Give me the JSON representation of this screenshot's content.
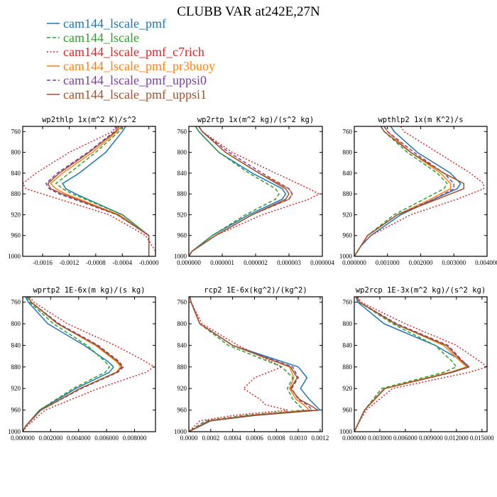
{
  "title": "CLUBB VAR at242E,27N",
  "legend": [
    {
      "name": "cam144_lscale_pmf",
      "color": "#1f77b4",
      "dash": "solid"
    },
    {
      "name": "cam144_lscale",
      "color": "#2ca02c",
      "dash": "dashed"
    },
    {
      "name": "cam144_lscale_pmf_c7rich",
      "color": "#d62728",
      "dash": "dotted"
    },
    {
      "name": "cam144_lscale_pmf_pr3buoy",
      "color": "#ff7f0e",
      "dash": "solid"
    },
    {
      "name": "cam144_lscale_pmf_uppsi0",
      "color": "#7b3f9e",
      "dash": "dashed"
    },
    {
      "name": "cam144_lscale_pmf_uppsi1",
      "color": "#a0522d",
      "dash": "solid"
    }
  ],
  "chart_data": [
    {
      "type": "line",
      "title": "wp2thlp  1x(m^2 K)/s^2",
      "xlim": [
        -0.0019,
        0.0001
      ],
      "ylim": [
        1000,
        750
      ],
      "xticks": [
        -0.0016,
        -0.0012,
        -0.0008,
        -0.0004,
        -0.0
      ],
      "xtick_labels": [
        "-0.0016",
        "-0.0012",
        "-0.0008",
        "-0.0004",
        "-0.0000"
      ],
      "yticks": [
        760,
        800,
        840,
        880,
        920,
        960,
        1000
      ],
      "y": [
        750,
        760,
        800,
        840,
        860,
        870,
        880,
        920,
        960,
        970,
        990,
        1000
      ],
      "series": [
        {
          "name": "cam144_lscale_pmf",
          "values": [
            -0.00035,
            -0.0004,
            -0.00065,
            -0.00105,
            -0.0013,
            -0.00125,
            -0.0011,
            -0.0004,
            0.0,
            0.0,
            0.0,
            0.0
          ]
        },
        {
          "name": "cam144_lscale",
          "values": [
            -0.0004,
            -0.00045,
            -0.0008,
            -0.0012,
            -0.0014,
            -0.0013,
            -0.00115,
            -0.0004,
            0.0,
            0.0,
            0.0,
            0.0
          ]
        },
        {
          "name": "cam144_lscale_pmf_c7rich",
          "values": [
            -0.0005,
            -0.00055,
            -0.0012,
            -0.0017,
            -0.0019,
            -0.00185,
            -0.0016,
            -0.0006,
            -5e-05,
            0.0,
            0.0001,
            0.0001
          ]
        },
        {
          "name": "cam144_lscale_pmf_pr3buoy",
          "values": [
            -0.00042,
            -0.00048,
            -0.00085,
            -0.0013,
            -0.00148,
            -0.0014,
            -0.00125,
            -0.00045,
            0.0,
            0.0,
            0.0,
            0.0
          ]
        },
        {
          "name": "cam144_lscale_pmf_uppsi0",
          "values": [
            -0.00048,
            -0.00052,
            -0.00092,
            -0.00138,
            -0.00155,
            -0.0015,
            -0.00135,
            -0.00048,
            0.0,
            0.0,
            0.0,
            0.0
          ]
        },
        {
          "name": "cam144_lscale_pmf_uppsi1",
          "values": [
            -0.00045,
            -0.0005,
            -0.0009,
            -0.00135,
            -0.00152,
            -0.00148,
            -0.0013,
            -0.00047,
            0.0,
            0.0,
            0.0,
            0.0
          ]
        }
      ]
    },
    {
      "type": "line",
      "title": "wp2rtp  1x(m^2 kg)/(s^2 kg)",
      "xlim": [
        0.0,
        4e-06
      ],
      "ylim": [
        1000,
        750
      ],
      "xticks": [
        0.0,
        1e-06,
        2e-06,
        3e-06,
        4e-06
      ],
      "xtick_labels": [
        "0.000000",
        "0.000001",
        "0.000002",
        "0.000003",
        "0.000004"
      ],
      "yticks": [
        760,
        800,
        840,
        880,
        920,
        960,
        1000
      ],
      "y": [
        750,
        760,
        800,
        840,
        870,
        880,
        890,
        920,
        960,
        990,
        1000
      ],
      "series": [
        {
          "name": "cam144_lscale_pmf",
          "values": [
            2e-07,
            3e-07,
            9e-07,
            1.9e-06,
            2.8e-06,
            2.9e-06,
            2.8e-06,
            1.8e-06,
            7e-07,
            1e-07,
            0.0
          ]
        },
        {
          "name": "cam144_lscale",
          "values": [
            2e-07,
            3e-07,
            9e-07,
            1.8e-06,
            2.6e-06,
            2.7e-06,
            2.6e-06,
            1.7e-06,
            7e-07,
            1e-07,
            0.0
          ]
        },
        {
          "name": "cam144_lscale_pmf_c7rich",
          "values": [
            3e-07,
            4e-07,
            1.3e-06,
            2.6e-06,
            3.6e-06,
            3.9e-06,
            3.6e-06,
            2.2e-06,
            8e-07,
            1e-07,
            0.0
          ]
        },
        {
          "name": "cam144_lscale_pmf_pr3buoy",
          "values": [
            3e-07,
            4e-07,
            1.1e-06,
            2.1e-06,
            3e-06,
            3.1e-06,
            3e-06,
            1.9e-06,
            8e-07,
            1e-07,
            0.0
          ]
        },
        {
          "name": "cam144_lscale_pmf_uppsi0",
          "values": [
            3e-07,
            4e-07,
            1.2e-06,
            2.2e-06,
            3e-06,
            3.1e-06,
            3e-06,
            1.9e-06,
            8e-07,
            1e-07,
            0.0
          ]
        },
        {
          "name": "cam144_lscale_pmf_uppsi1",
          "values": [
            3e-07,
            4e-07,
            1.1e-06,
            2.1e-06,
            2.9e-06,
            3e-06,
            2.9e-06,
            1.9e-06,
            8e-07,
            1e-07,
            0.0
          ]
        }
      ]
    },
    {
      "type": "line",
      "title": "wpthlp2  1x(m K^2)/s",
      "xlim": [
        0.0,
        0.004
      ],
      "ylim": [
        1000,
        750
      ],
      "xticks": [
        0.0,
        0.001,
        0.002,
        0.003,
        0.004
      ],
      "xtick_labels": [
        "0.000000",
        "0.001000",
        "0.002000",
        "0.003000",
        "0.004000"
      ],
      "yticks": [
        760,
        800,
        840,
        880,
        920,
        960,
        1000
      ],
      "y": [
        750,
        760,
        800,
        840,
        860,
        870,
        890,
        920,
        960,
        980,
        1000
      ],
      "series": [
        {
          "name": "cam144_lscale_pmf",
          "values": [
            0.0011,
            0.0012,
            0.0019,
            0.0029,
            0.0032,
            0.0031,
            0.0024,
            0.0014,
            0.0005,
            0.0002,
            0.0
          ]
        },
        {
          "name": "cam144_lscale",
          "values": [
            0.0008,
            0.0009,
            0.0016,
            0.0025,
            0.0028,
            0.0027,
            0.0021,
            0.0012,
            0.0004,
            0.0002,
            0.0
          ]
        },
        {
          "name": "cam144_lscale_pmf_c7rich",
          "values": [
            0.0014,
            0.0015,
            0.0025,
            0.0035,
            0.0039,
            0.0039,
            0.0031,
            0.0017,
            0.0005,
            0.0002,
            0.0
          ]
        },
        {
          "name": "cam144_lscale_pmf_pr3buoy",
          "values": [
            0.0009,
            0.001,
            0.0017,
            0.0026,
            0.0029,
            0.0029,
            0.0023,
            0.0013,
            0.0004,
            0.0002,
            0.0
          ]
        },
        {
          "name": "cam144_lscale_pmf_uppsi0",
          "values": [
            0.0009,
            0.001,
            0.0018,
            0.0027,
            0.003,
            0.003,
            0.0024,
            0.0013,
            0.0004,
            0.0002,
            0.0
          ]
        },
        {
          "name": "cam144_lscale_pmf_uppsi1",
          "values": [
            0.0008,
            0.0009,
            0.0017,
            0.0027,
            0.0033,
            0.0033,
            0.0025,
            0.0013,
            0.0004,
            0.0002,
            0.0
          ]
        }
      ]
    },
    {
      "type": "line",
      "title": "wprtp2  1E-6x(m kg)/(s kg)",
      "xlim": [
        0.0,
        0.0095
      ],
      "ylim": [
        1000,
        750
      ],
      "xticks": [
        0.0,
        0.002,
        0.004,
        0.006,
        0.008
      ],
      "xtick_labels": [
        "0.000000",
        "0.002000",
        "0.004000",
        "0.006000",
        "0.008000"
      ],
      "yticks": [
        760,
        800,
        840,
        880,
        920,
        960,
        1000
      ],
      "y": [
        750,
        760,
        800,
        840,
        870,
        880,
        890,
        920,
        960,
        990,
        1000
      ],
      "series": [
        {
          "name": "cam144_lscale_pmf",
          "values": [
            0.0002,
            0.0004,
            0.0018,
            0.0044,
            0.0061,
            0.0065,
            0.0062,
            0.0038,
            0.0012,
            0.0002,
            0.0
          ]
        },
        {
          "name": "cam144_lscale",
          "values": [
            0.0003,
            0.0005,
            0.0022,
            0.0046,
            0.0059,
            0.0062,
            0.0059,
            0.0036,
            0.0012,
            0.0002,
            0.0
          ]
        },
        {
          "name": "cam144_lscale_pmf_c7rich",
          "values": [
            0.0005,
            0.0008,
            0.0032,
            0.0066,
            0.0088,
            0.0094,
            0.0088,
            0.0054,
            0.0016,
            0.0003,
            0.0
          ]
        },
        {
          "name": "cam144_lscale_pmf_pr3buoy",
          "values": [
            0.0004,
            0.0006,
            0.0025,
            0.0052,
            0.0067,
            0.007,
            0.0067,
            0.0041,
            0.0013,
            0.0002,
            0.0
          ]
        },
        {
          "name": "cam144_lscale_pmf_uppsi0",
          "values": [
            0.0004,
            0.0006,
            0.0026,
            0.0054,
            0.0069,
            0.0072,
            0.0068,
            0.0042,
            0.0013,
            0.0002,
            0.0
          ]
        },
        {
          "name": "cam144_lscale_pmf_uppsi1",
          "values": [
            0.0004,
            0.0006,
            0.0025,
            0.0053,
            0.0068,
            0.0071,
            0.0067,
            0.0041,
            0.0013,
            0.0002,
            0.0
          ]
        }
      ]
    },
    {
      "type": "line",
      "title": "rcp2  1E-6x(kg^2)/(kg^2)",
      "xlim": [
        0.0,
        0.00122
      ],
      "ylim": [
        1000,
        750
      ],
      "xticks": [
        0.0,
        0.0002,
        0.0004,
        0.0006,
        0.0008,
        0.001,
        0.0012
      ],
      "xtick_labels": [
        "0.0000",
        "0.0002",
        "0.0004",
        "0.0006",
        "0.0008",
        "0.0010",
        "0.0012"
      ],
      "yticks": [
        760,
        800,
        840,
        880,
        920,
        960,
        1000
      ],
      "y": [
        750,
        760,
        800,
        840,
        880,
        900,
        920,
        940,
        950,
        960,
        970,
        980,
        1000
      ],
      "series": [
        {
          "name": "cam144_lscale_pmf",
          "values": [
            1e-05,
            2e-05,
            0.0001,
            0.0004,
            0.001,
            0.00108,
            0.00102,
            0.0011,
            0.00115,
            0.0012,
            0.0006,
            0.0002,
            0.0
          ]
        },
        {
          "name": "cam144_lscale",
          "values": [
            1e-05,
            2e-05,
            0.0001,
            0.00036,
            0.00085,
            0.00095,
            0.0009,
            0.00095,
            0.001,
            0.00105,
            0.0005,
            0.00015,
            0.0
          ]
        },
        {
          "name": "cam144_lscale_pmf_c7rich",
          "values": [
            1e-05,
            2e-05,
            0.00012,
            0.00045,
            0.00085,
            0.0006,
            0.0005,
            0.00065,
            0.0007,
            0.0009,
            0.0004,
            0.0001,
            0.0
          ]
        },
        {
          "name": "cam144_lscale_pmf_pr3buoy",
          "values": [
            1e-05,
            2e-05,
            0.0001,
            0.0004,
            0.00092,
            0.00096,
            0.00092,
            0.00098,
            0.00105,
            0.0011,
            0.00055,
            0.00018,
            0.0
          ]
        },
        {
          "name": "cam144_lscale_pmf_uppsi0",
          "values": [
            1e-05,
            2e-05,
            0.0001,
            0.0004,
            0.00095,
            0.001,
            0.00094,
            0.001,
            0.00108,
            0.00113,
            0.00056,
            0.00018,
            0.0
          ]
        },
        {
          "name": "cam144_lscale_pmf_uppsi1",
          "values": [
            1e-05,
            2e-05,
            0.0001,
            0.0004,
            0.00093,
            0.00099,
            0.00093,
            0.00101,
            0.0011,
            0.00118,
            0.00058,
            0.00019,
            0.0
          ]
        }
      ]
    },
    {
      "type": "line",
      "title": "wp2rcp  1E-3x(m^2 kg)/(s^2 kg)",
      "xlim": [
        0.0,
        0.0156
      ],
      "ylim": [
        1000,
        750
      ],
      "xticks": [
        0.0,
        0.003,
        0.006,
        0.009,
        0.012,
        0.015
      ],
      "xtick_labels": [
        "0.000000",
        "0.003000",
        "0.006000",
        "0.009000",
        "0.012000",
        "0.015000"
      ],
      "yticks": [
        760,
        800,
        840,
        880,
        920,
        960,
        1000
      ],
      "y": [
        750,
        760,
        800,
        840,
        870,
        880,
        890,
        920,
        960,
        990,
        1000
      ],
      "series": [
        {
          "name": "cam144_lscale_pmf",
          "values": [
            0.0002,
            0.0004,
            0.0035,
            0.0095,
            0.0128,
            0.0135,
            0.0115,
            0.0035,
            0.0012,
            0.0003,
            0.0
          ]
        },
        {
          "name": "cam144_lscale",
          "values": [
            0.0003,
            0.0006,
            0.0045,
            0.0095,
            0.0115,
            0.012,
            0.0105,
            0.0032,
            0.0012,
            0.0003,
            0.0
          ]
        },
        {
          "name": "cam144_lscale_pmf_c7rich",
          "values": [
            0.0004,
            0.0008,
            0.006,
            0.012,
            0.0148,
            0.0156,
            0.0135,
            0.0045,
            0.0014,
            0.0003,
            0.0
          ]
        },
        {
          "name": "cam144_lscale_pmf_pr3buoy",
          "values": [
            0.0003,
            0.0006,
            0.0048,
            0.0105,
            0.0125,
            0.0132,
            0.0112,
            0.0035,
            0.0012,
            0.0003,
            0.0
          ]
        },
        {
          "name": "cam144_lscale_pmf_uppsi0",
          "values": [
            0.0003,
            0.0006,
            0.005,
            0.011,
            0.0128,
            0.0135,
            0.0115,
            0.0036,
            0.0012,
            0.0003,
            0.0
          ]
        },
        {
          "name": "cam144_lscale_pmf_uppsi1",
          "values": [
            0.0003,
            0.0006,
            0.0048,
            0.0108,
            0.0127,
            0.0134,
            0.0114,
            0.0036,
            0.0012,
            0.0003,
            0.0
          ]
        }
      ]
    }
  ]
}
